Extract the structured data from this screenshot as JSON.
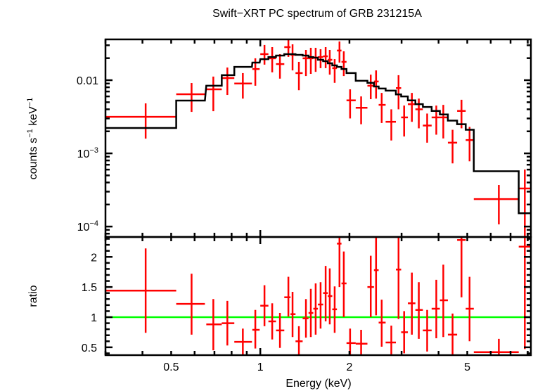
{
  "chart_data": {
    "type": "scatter",
    "title": "Swift−XRT PC spectrum of GRB 231215A",
    "xlabel": "Energy (keV)",
    "xscale": "log",
    "xlim": [
      0.3,
      8.2
    ],
    "xticks": [
      {
        "value": 0.5,
        "label": "0.5"
      },
      {
        "value": 1,
        "label": "1"
      },
      {
        "value": 2,
        "label": "2"
      },
      {
        "value": 5,
        "label": "5"
      }
    ],
    "colors": {
      "data": "#ff0000",
      "model": "#000000",
      "unity_line": "#00ff00",
      "axes": "#000000"
    },
    "panels": [
      {
        "name": "spectrum",
        "ylabel": "counts s⁻¹ keV⁻¹",
        "ylabel_parts": {
          "base1": "counts s",
          "sup1": "−1",
          "base2": " keV",
          "sup2": "−1"
        },
        "yscale": "log",
        "ylim": [
          7.2e-05,
          0.0361
        ],
        "yticks": [
          {
            "value": 0.01,
            "label": "0.01",
            "sup": ""
          },
          {
            "value": 0.001,
            "label": "10",
            "sup": "−3"
          },
          {
            "value": 0.0001,
            "label": "10",
            "sup": "−4"
          }
        ]
      },
      {
        "name": "ratio",
        "ylabel": "ratio",
        "yscale": "linear",
        "ylim": [
          0.37,
          2.33
        ],
        "yticks": [
          {
            "value": 0.5,
            "label": "0.5"
          },
          {
            "value": 1,
            "label": "1"
          },
          {
            "value": 1.5,
            "label": "1.5"
          },
          {
            "value": 2,
            "label": "2"
          }
        ],
        "reference_line": 1
      }
    ],
    "series": [
      {
        "name": "data",
        "points": [
          {
            "e": 0.41,
            "elo": 0.3,
            "ehi": 0.52,
            "v": 0.00316,
            "vlo": 0.00159,
            "vhi": 0.00482,
            "r": 1.44,
            "rlo": 0.74,
            "rhi": 2.14,
            "m": 0.00222
          },
          {
            "e": 0.586,
            "elo": 0.52,
            "ehi": 0.65,
            "v": 0.00642,
            "vlo": 0.00369,
            "vhi": 0.00915,
            "r": 1.22,
            "rlo": 0.71,
            "rhi": 1.72,
            "m": 0.00526
          },
          {
            "e": 0.694,
            "elo": 0.657,
            "ehi": 0.741,
            "v": 0.0075,
            "vlo": 0.00377,
            "vhi": 0.0112,
            "r": 0.88,
            "rlo": 0.45,
            "rhi": 1.3,
            "m": 0.0084
          },
          {
            "e": 0.774,
            "elo": 0.741,
            "ehi": 0.817,
            "v": 0.0107,
            "vlo": 0.00628,
            "vhi": 0.0149,
            "r": 0.9,
            "rlo": 0.53,
            "rhi": 1.27,
            "m": 0.0117
          },
          {
            "e": 0.873,
            "elo": 0.817,
            "ehi": 0.937,
            "v": 0.009,
            "vlo": 0.0056,
            "vhi": 0.0125,
            "r": 0.59,
            "rlo": 0.37,
            "rhi": 0.81,
            "m": 0.0152
          },
          {
            "e": 0.962,
            "elo": 0.94,
            "ehi": 0.995,
            "v": 0.0142,
            "vlo": 0.0084,
            "vhi": 0.0199,
            "r": 0.79,
            "rlo": 0.48,
            "rhi": 1.12,
            "m": 0.0174
          },
          {
            "e": 1.033,
            "elo": 1.0,
            "ehi": 1.065,
            "v": 0.0227,
            "vlo": 0.0163,
            "vhi": 0.0303,
            "r": 1.19,
            "rlo": 0.85,
            "rhi": 1.53,
            "m": 0.0194
          },
          {
            "e": 1.097,
            "elo": 1.065,
            "ehi": 1.13,
            "v": 0.0199,
            "vlo": 0.0128,
            "vhi": 0.0283,
            "r": 0.93,
            "rlo": 0.63,
            "rhi": 1.23,
            "m": 0.0207
          },
          {
            "e": 1.165,
            "elo": 1.13,
            "ehi": 1.205,
            "v": 0.0166,
            "vlo": 0.0105,
            "vhi": 0.0227,
            "r": 0.78,
            "rlo": 0.49,
            "rhi": 1.07,
            "m": 0.0217
          },
          {
            "e": 1.244,
            "elo": 1.205,
            "ehi": 1.265,
            "v": 0.0283,
            "vlo": 0.0208,
            "vhi": 0.0369,
            "r": 1.33,
            "rlo": 1.01,
            "rhi": 1.67,
            "m": 0.0227
          },
          {
            "e": 1.285,
            "elo": 1.265,
            "ehi": 1.315,
            "v": 0.0222,
            "vlo": 0.0136,
            "vhi": 0.0309,
            "r": 1.05,
            "rlo": 0.67,
            "rhi": 1.42,
            "m": 0.0227
          },
          {
            "e": 1.35,
            "elo": 1.315,
            "ehi": 1.39,
            "v": 0.0125,
            "vlo": 0.0073,
            "vhi": 0.0178,
            "r": 0.6,
            "rlo": 0.37,
            "rhi": 0.85,
            "m": 0.0222
          },
          {
            "e": 1.426,
            "elo": 1.39,
            "ehi": 1.455,
            "v": 0.0199,
            "vlo": 0.0114,
            "vhi": 0.0259,
            "r": 0.98,
            "rlo": 0.66,
            "rhi": 1.3,
            "m": 0.0217
          },
          {
            "e": 1.481,
            "elo": 1.455,
            "ehi": 1.51,
            "v": 0.0199,
            "vlo": 0.0122,
            "vhi": 0.0277,
            "r": 1.07,
            "rlo": 0.67,
            "rhi": 1.47,
            "m": 0.0207
          },
          {
            "e": 1.538,
            "elo": 1.51,
            "ehi": 1.565,
            "v": 0.0203,
            "vlo": 0.013,
            "vhi": 0.0277,
            "r": 1.14,
            "rlo": 0.71,
            "rhi": 1.56,
            "m": 0.0203
          },
          {
            "e": 1.598,
            "elo": 1.565,
            "ehi": 1.63,
            "v": 0.0207,
            "vlo": 0.0146,
            "vhi": 0.0265,
            "r": 1.21,
            "rlo": 0.81,
            "rhi": 1.58,
            "m": 0.019
          },
          {
            "e": 1.662,
            "elo": 1.63,
            "ehi": 1.69,
            "v": 0.0212,
            "vlo": 0.0146,
            "vhi": 0.0283,
            "r": 1.4,
            "rlo": 0.93,
            "rhi": 1.85,
            "m": 0.0182
          },
          {
            "e": 1.716,
            "elo": 1.69,
            "ehi": 1.75,
            "v": 0.019,
            "vlo": 0.0119,
            "vhi": 0.0259,
            "r": 1.35,
            "rlo": 0.88,
            "rhi": 1.81,
            "m": 0.017
          },
          {
            "e": 1.783,
            "elo": 1.75,
            "ehi": 1.815,
            "v": 0.0146,
            "vlo": 0.0092,
            "vhi": 0.0194,
            "r": 1.13,
            "rlo": 0.74,
            "rhi": 1.51,
            "m": 0.0159
          },
          {
            "e": 1.851,
            "elo": 1.815,
            "ehi": 1.88,
            "v": 0.0254,
            "vlo": 0.0174,
            "vhi": 0.0338,
            "r": 2.22,
            "rlo": 1.5,
            "rhi": 2.33,
            "m": 0.0152
          },
          {
            "e": 1.914,
            "elo": 1.88,
            "ehi": 1.955,
            "v": 0.0178,
            "vlo": 0.0114,
            "vhi": 0.0248,
            "r": 1.56,
            "rlo": 1.0,
            "rhi": 2.09,
            "m": 0.0142
          },
          {
            "e": 2.01,
            "elo": 1.955,
            "ehi": 2.1,
            "v": 0.0053,
            "vlo": 0.003,
            "vhi": 0.0075,
            "r": 0.57,
            "rlo": 0.37,
            "rhi": 0.81,
            "m": 0.0125
          },
          {
            "e": 2.19,
            "elo": 2.1,
            "ehi": 2.3,
            "v": 0.0042,
            "vlo": 0.0025,
            "vhi": 0.006,
            "r": 0.56,
            "rlo": 0.37,
            "rhi": 0.79,
            "m": 0.0098
          },
          {
            "e": 2.36,
            "elo": 2.3,
            "ehi": 2.42,
            "v": 0.0084,
            "vlo": 0.0055,
            "vhi": 0.0119,
            "r": 1.5,
            "rlo": 1.0,
            "rhi": 2.02,
            "m": 0.0092
          },
          {
            "e": 2.46,
            "elo": 2.42,
            "ehi": 2.51,
            "v": 0.0096,
            "vlo": 0.0056,
            "vhi": 0.0136,
            "r": 1.78,
            "rlo": 1.03,
            "rhi": 2.33,
            "m": 0.0082
          },
          {
            "e": 2.57,
            "elo": 2.51,
            "ehi": 2.65,
            "v": 0.0046,
            "vlo": 0.0026,
            "vhi": 0.0067,
            "r": 0.91,
            "rlo": 0.51,
            "rhi": 1.29,
            "m": 0.0077
          },
          {
            "e": 2.77,
            "elo": 2.65,
            "ehi": 2.87,
            "v": 0.0027,
            "vlo": 0.0015,
            "vhi": 0.004,
            "r": 0.58,
            "rlo": 0.37,
            "rhi": 0.86,
            "m": 0.0072
          },
          {
            "e": 2.93,
            "elo": 2.87,
            "ehi": 2.99,
            "v": 0.0078,
            "vlo": 0.004,
            "vhi": 0.0117,
            "r": 1.79,
            "rlo": 0.97,
            "rhi": 2.33,
            "m": 0.0064
          },
          {
            "e": 3.06,
            "elo": 2.99,
            "ehi": 3.15,
            "v": 0.0031,
            "vlo": 0.0017,
            "vhi": 0.0045,
            "r": 0.75,
            "rlo": 0.4,
            "rhi": 1.1,
            "m": 0.006
          },
          {
            "e": 3.25,
            "elo": 3.15,
            "ehi": 3.34,
            "v": 0.0047,
            "vlo": 0.0027,
            "vhi": 0.0067,
            "r": 1.23,
            "rlo": 0.71,
            "rhi": 1.74,
            "m": 0.0053
          },
          {
            "e": 3.43,
            "elo": 3.34,
            "ehi": 3.54,
            "v": 0.004,
            "vlo": 0.0022,
            "vhi": 0.0056,
            "r": 1.12,
            "rlo": 0.64,
            "rhi": 1.58,
            "m": 0.0047
          },
          {
            "e": 3.66,
            "elo": 3.54,
            "ehi": 3.79,
            "v": 0.0024,
            "vlo": 0.0014,
            "vhi": 0.0035,
            "r": 0.78,
            "rlo": 0.43,
            "rhi": 1.12,
            "m": 0.0043
          },
          {
            "e": 3.93,
            "elo": 3.79,
            "ehi": 4.04,
            "v": 0.0031,
            "vlo": 0.0018,
            "vhi": 0.0045,
            "r": 1.14,
            "rlo": 0.65,
            "rhi": 1.62,
            "m": 0.0038
          },
          {
            "e": 4.15,
            "elo": 4.04,
            "ehi": 4.3,
            "v": 0.0031,
            "vlo": 0.0016,
            "vhi": 0.0046,
            "r": 1.28,
            "rlo": 0.67,
            "rhi": 1.87,
            "m": 0.0034
          },
          {
            "e": 4.46,
            "elo": 4.3,
            "ehi": 4.62,
            "v": 0.0014,
            "vlo": 0.00073,
            "vhi": 0.0021,
            "r": 0.71,
            "rlo": 0.37,
            "rhi": 1.06,
            "m": 0.0028
          },
          {
            "e": 4.78,
            "elo": 4.62,
            "ehi": 4.94,
            "v": 0.0038,
            "vlo": 0.0022,
            "vhi": 0.0054,
            "r": 2.28,
            "rlo": 1.33,
            "rhi": 2.33,
            "m": 0.0025
          },
          {
            "e": 5.09,
            "elo": 4.94,
            "ehi": 5.26,
            "v": 0.00152,
            "vlo": 0.00078,
            "vhi": 0.0023,
            "r": 1.14,
            "rlo": 0.6,
            "rhi": 1.67,
            "m": 0.0021
          },
          {
            "e": 6.39,
            "elo": 5.26,
            "ehi": 7.46,
            "v": 0.000237,
            "vlo": 0.000107,
            "vhi": 0.00037,
            "r": 0.42,
            "rlo": 0.37,
            "rhi": 0.64,
            "m": 0.00057
          },
          {
            "e": 7.82,
            "elo": 7.46,
            "ehi": 8.2,
            "v": 0.000331,
            "vlo": 7.2e-05,
            "vhi": 0.0006,
            "r": 2.17,
            "rlo": 0.47,
            "rhi": 2.33,
            "m": 0.000152
          }
        ]
      }
    ]
  }
}
